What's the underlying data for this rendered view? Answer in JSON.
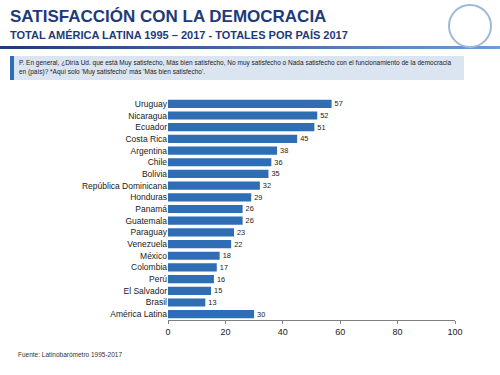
{
  "chart_data": {
    "type": "bar",
    "title": "SATISFACCIÓN CON LA DEMOCRACIA",
    "subtitle": "TOTAL AMÉRICA LATINA 1995 – 2017 - TOTALES POR PAÍS 2017",
    "annotations": [
      "P. En general, ¿Diría Ud. que está Muy satisfecho, Más bien satisfecho, No muy satisfecho o Nada satisfecho con el funcionamiento de la democracia en (país)? *Aquí solo 'Muy satisfecho' más 'Más bien satisfecho'.",
      "Fuente: Latinobarómetro 1995-2017"
    ],
    "categories": [
      "Uruguay",
      "Nicaragua",
      "Ecuador",
      "Costa Rica",
      "Argentina",
      "Chile",
      "Bolivia",
      "República Dominicana",
      "Honduras",
      "Panamá",
      "Guatemala",
      "Paraguay",
      "Venezuela",
      "México",
      "Colombia",
      "Perú",
      "El Salvador",
      "Brasil",
      "América Latina"
    ],
    "values": [
      57,
      52,
      51,
      45,
      38,
      36,
      35,
      32,
      29,
      26,
      26,
      23,
      22,
      18,
      17,
      16,
      15,
      13,
      30
    ],
    "color": "#2f6db5",
    "xlim": [
      0,
      100
    ],
    "xticks": [
      0,
      20,
      40,
      60,
      80,
      100
    ],
    "orientation": "horizontal",
    "data_labels": true,
    "grid": false
  }
}
